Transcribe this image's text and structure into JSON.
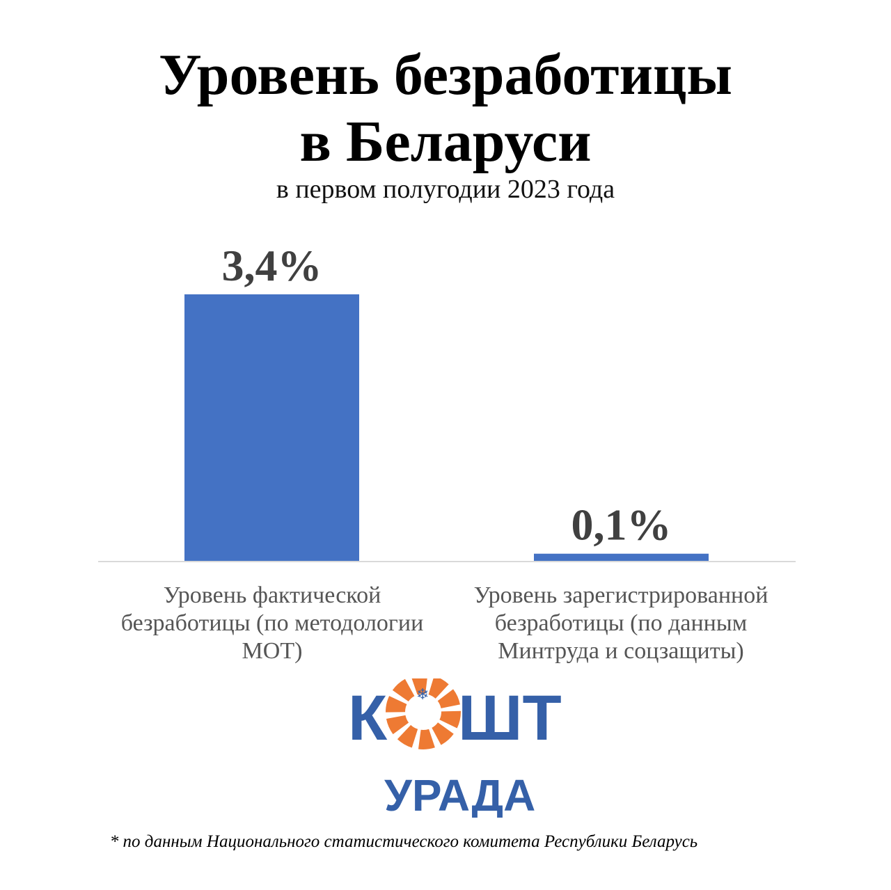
{
  "title_line1": "Уровень безработицы",
  "title_line2": "в Беларуси",
  "subtitle": "в первом полугодии 2023 года",
  "chart_data": {
    "type": "bar",
    "categories": [
      "Уровень фактической безработицы (по методологии МОТ)",
      "Уровень зарегистрированной безработицы (по данным Минтруда и соцзащиты)"
    ],
    "values": [
      3.4,
      0.1
    ],
    "data_labels": [
      "3,4%",
      "0,1%"
    ],
    "ylim": [
      0,
      3.4
    ],
    "grid": false,
    "bar_color": "#4472C4"
  },
  "category_lines": [
    [
      "Уровень фактической",
      "безработицы (по методологии",
      "МОТ)"
    ],
    [
      "Уровень зарегистрированной",
      "безработицы (по данным",
      "Минтруда и соцзащиты)"
    ]
  ],
  "logo": {
    "text_left": "К",
    "text_right": "ШТ",
    "text_bottom": "УРАДА",
    "icon": "orange-sun-icon",
    "blue": "#3560A8",
    "orange": "#EE7A33"
  },
  "footnote": "* по данным Национального статистического комитета Республики Беларусь"
}
